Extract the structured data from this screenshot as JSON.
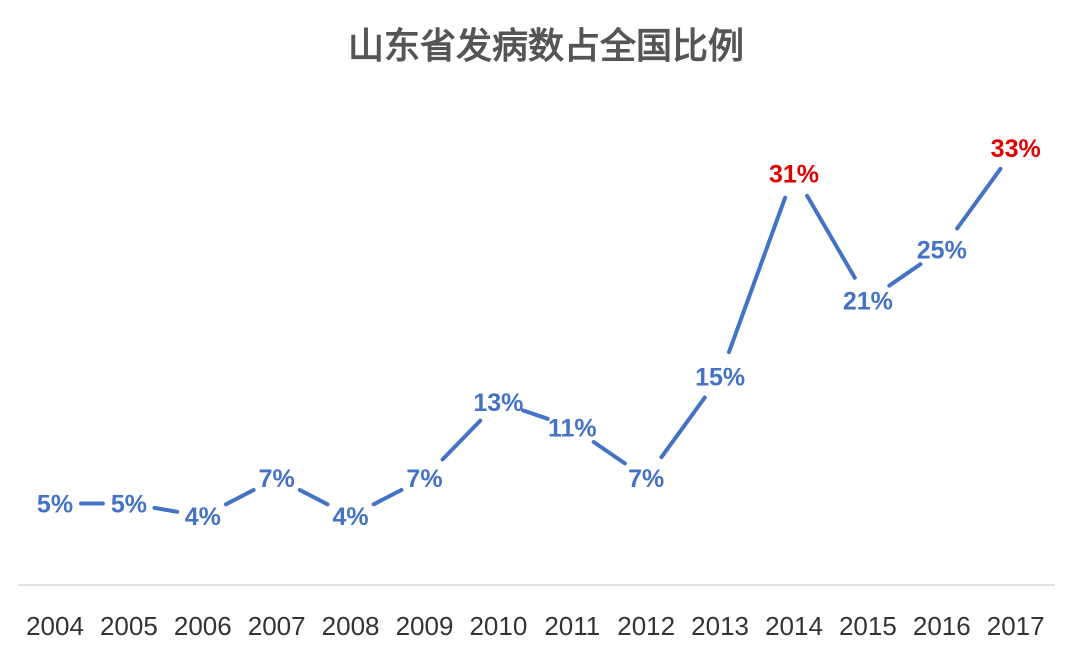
{
  "chart_data": {
    "type": "line",
    "title": "山东省发病数占全国比例",
    "xlabel": "",
    "ylabel": "",
    "categories": [
      "2004",
      "2005",
      "2006",
      "2007",
      "2008",
      "2009",
      "2010",
      "2011",
      "2012",
      "2013",
      "2014",
      "2015",
      "2016",
      "2017"
    ],
    "series": [
      {
        "values": [
          5,
          5,
          4,
          7,
          4,
          7,
          13,
          11,
          7,
          15,
          31,
          21,
          25,
          33
        ],
        "labels": [
          "5%",
          "5%",
          "4%",
          "7%",
          "4%",
          "7%",
          "13%",
          "11%",
          "7%",
          "15%",
          "31%",
          "21%",
          "25%",
          "33%"
        ],
        "color": "#4472C4"
      }
    ],
    "highlight_color": "#E00000",
    "highlighted_labels": [
      "2014",
      "2017"
    ],
    "ylim": [
      0,
      35
    ],
    "grid": false,
    "legend": "none"
  }
}
